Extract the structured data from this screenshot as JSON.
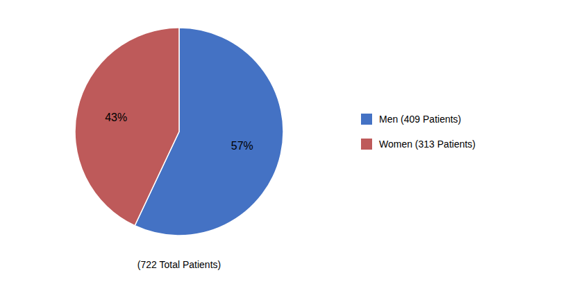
{
  "chart_data": {
    "type": "pie",
    "categories": [
      "Men (409 Patients)",
      "Women (313 Patients)"
    ],
    "values": [
      57,
      43
    ],
    "value_labels": [
      "57%",
      "43%"
    ],
    "colors": [
      "#4472C4",
      "#BE5A5A"
    ],
    "annotations": [
      "(722 Total Patients)"
    ],
    "data_labels": true,
    "legend": "right"
  }
}
